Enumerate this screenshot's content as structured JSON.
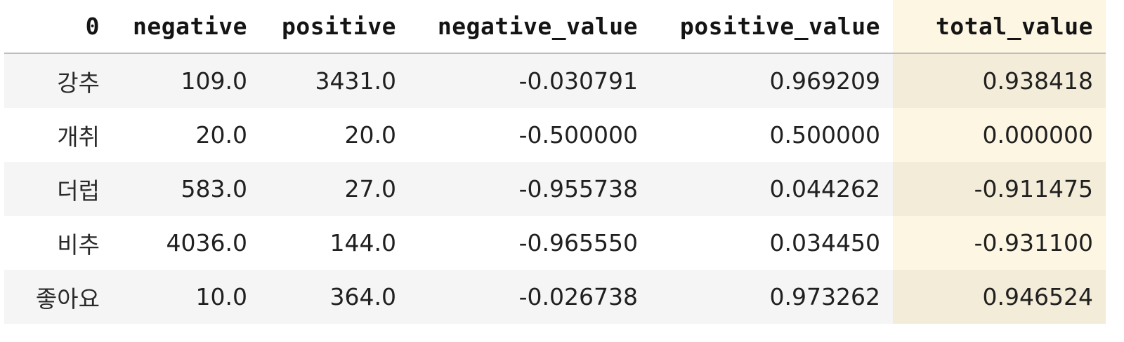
{
  "table": {
    "columns": [
      "0",
      "negative",
      "positive",
      "negative_value",
      "positive_value",
      "total_value"
    ],
    "highlight_column": "total_value",
    "highlight_color": "#fdf6e3",
    "rows": [
      {
        "index": "강추",
        "negative": "109.0",
        "positive": "3431.0",
        "negative_value": "-0.030791",
        "positive_value": "0.969209",
        "total_value": "0.938418"
      },
      {
        "index": "개취",
        "negative": "20.0",
        "positive": "20.0",
        "negative_value": "-0.500000",
        "positive_value": "0.500000",
        "total_value": "0.000000"
      },
      {
        "index": "더럽",
        "negative": "583.0",
        "positive": "27.0",
        "negative_value": "-0.955738",
        "positive_value": "0.044262",
        "total_value": "-0.911475"
      },
      {
        "index": "비추",
        "negative": "4036.0",
        "positive": "144.0",
        "negative_value": "-0.965550",
        "positive_value": "0.034450",
        "total_value": "-0.931100"
      },
      {
        "index": "좋아요",
        "negative": "10.0",
        "positive": "364.0",
        "negative_value": "-0.026738",
        "positive_value": "0.973262",
        "total_value": "0.946524"
      }
    ]
  }
}
